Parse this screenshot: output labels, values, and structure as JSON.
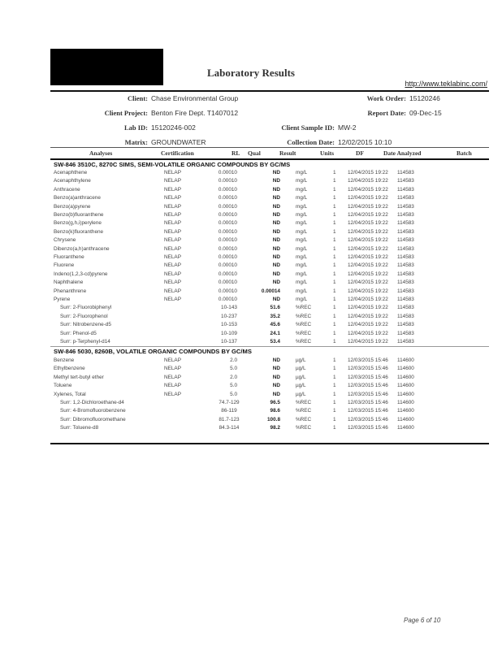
{
  "header": {
    "title": "Laboratory Results",
    "url": "http://www.teklabinc.com/",
    "client_label": "Client:",
    "client": "Chase Environmental Group",
    "project_label": "Client Project:",
    "project": "Benton Fire Dept. T1407012",
    "labid_label": "Lab ID:",
    "labid": "15120246-002",
    "matrix_label": "Matrix:",
    "matrix": "GROUNDWATER",
    "workorder_label": "Work Order:",
    "workorder": "15120246",
    "reportdate_label": "Report Date:",
    "reportdate": "09-Dec-15",
    "sampleid_label": "Client Sample ID:",
    "sampleid": "MW-2",
    "colldate_label": "Collection Date:",
    "colldate": "12/02/2015 10:10"
  },
  "columns": [
    "Analyses",
    "Certification",
    "RL",
    "Qual",
    "Result",
    "Units",
    "DF",
    "Date Analyzed",
    "Batch"
  ],
  "sections": [
    {
      "title": "SW-846 3510C, 8270C SIMS, SEMI-VOLATILE ORGANIC COMPOUNDS BY GC/MS",
      "rows": [
        {
          "analyte": "Acenaphthene",
          "cert": "NELAP",
          "rl": "0.00010",
          "result": "ND",
          "units": "mg/L",
          "df": "1",
          "date": "12/04/2015 19:22",
          "batch": "114583"
        },
        {
          "analyte": "Acenaphthylene",
          "cert": "NELAP",
          "rl": "0.00010",
          "result": "ND",
          "units": "mg/L",
          "df": "1",
          "date": "12/04/2015 19:22",
          "batch": "114583"
        },
        {
          "analyte": "Anthracene",
          "cert": "NELAP",
          "rl": "0.00010",
          "result": "ND",
          "units": "mg/L",
          "df": "1",
          "date": "12/04/2015 19:22",
          "batch": "114583"
        },
        {
          "analyte": "Benzo(a)anthracene",
          "cert": "NELAP",
          "rl": "0.00010",
          "result": "ND",
          "units": "mg/L",
          "df": "1",
          "date": "12/04/2015 19:22",
          "batch": "114583"
        },
        {
          "analyte": "Benzo(a)pyrene",
          "cert": "NELAP",
          "rl": "0.00010",
          "result": "ND",
          "units": "mg/L",
          "df": "1",
          "date": "12/04/2015 19:22",
          "batch": "114583"
        },
        {
          "analyte": "Benzo(b)fluoranthene",
          "cert": "NELAP",
          "rl": "0.00010",
          "result": "ND",
          "units": "mg/L",
          "df": "1",
          "date": "12/04/2015 19:22",
          "batch": "114583"
        },
        {
          "analyte": "Benzo(g,h,i)perylene",
          "cert": "NELAP",
          "rl": "0.00010",
          "result": "ND",
          "units": "mg/L",
          "df": "1",
          "date": "12/04/2015 19:22",
          "batch": "114583"
        },
        {
          "analyte": "Benzo(k)fluoranthene",
          "cert": "NELAP",
          "rl": "0.00010",
          "result": "ND",
          "units": "mg/L",
          "df": "1",
          "date": "12/04/2015 19:22",
          "batch": "114583"
        },
        {
          "analyte": "Chrysene",
          "cert": "NELAP",
          "rl": "0.00010",
          "result": "ND",
          "units": "mg/L",
          "df": "1",
          "date": "12/04/2015 19:22",
          "batch": "114583"
        },
        {
          "analyte": "Dibenzo(a,h)anthracene",
          "cert": "NELAP",
          "rl": "0.00010",
          "result": "ND",
          "units": "mg/L",
          "df": "1",
          "date": "12/04/2015 19:22",
          "batch": "114583"
        },
        {
          "analyte": "Fluoranthene",
          "cert": "NELAP",
          "rl": "0.00010",
          "result": "ND",
          "units": "mg/L",
          "df": "1",
          "date": "12/04/2015 19:22",
          "batch": "114583"
        },
        {
          "analyte": "Fluorene",
          "cert": "NELAP",
          "rl": "0.00010",
          "result": "ND",
          "units": "mg/L",
          "df": "1",
          "date": "12/04/2015 19:22",
          "batch": "114583"
        },
        {
          "analyte": "Indeno(1,2,3-cd)pyrene",
          "cert": "NELAP",
          "rl": "0.00010",
          "result": "ND",
          "units": "mg/L",
          "df": "1",
          "date": "12/04/2015 19:22",
          "batch": "114583"
        },
        {
          "analyte": "Naphthalene",
          "cert": "NELAP",
          "rl": "0.00010",
          "result": "ND",
          "units": "mg/L",
          "df": "1",
          "date": "12/04/2015 19:22",
          "batch": "114583"
        },
        {
          "analyte": "Phenanthrene",
          "cert": "NELAP",
          "rl": "0.00010",
          "result": "0.00014",
          "units": "mg/L",
          "df": "1",
          "date": "12/04/2015 19:22",
          "batch": "114583"
        },
        {
          "analyte": "Pyrene",
          "cert": "NELAP",
          "rl": "0.00010",
          "result": "ND",
          "units": "mg/L",
          "df": "1",
          "date": "12/04/2015 19:22",
          "batch": "114583"
        },
        {
          "analyte": "Surr: 2-Fluorobiphenyl",
          "cert": "",
          "rl": "10-143",
          "result": "51.6",
          "units": "%REC",
          "df": "1",
          "date": "12/04/2015 19:22",
          "batch": "114583",
          "surr": true
        },
        {
          "analyte": "Surr: 2-Fluorophenol",
          "cert": "",
          "rl": "10-237",
          "result": "35.2",
          "units": "%REC",
          "df": "1",
          "date": "12/04/2015 19:22",
          "batch": "114583",
          "surr": true
        },
        {
          "analyte": "Surr: Nitrobenzene-d5",
          "cert": "",
          "rl": "10-153",
          "result": "45.6",
          "units": "%REC",
          "df": "1",
          "date": "12/04/2015 19:22",
          "batch": "114583",
          "surr": true
        },
        {
          "analyte": "Surr: Phenol-d5",
          "cert": "",
          "rl": "10-109",
          "result": "24.1",
          "units": "%REC",
          "df": "1",
          "date": "12/04/2015 19:22",
          "batch": "114583",
          "surr": true
        },
        {
          "analyte": "Surr: p-Terphenyl-d14",
          "cert": "",
          "rl": "10-137",
          "result": "53.4",
          "units": "%REC",
          "df": "1",
          "date": "12/04/2015 19:22",
          "batch": "114583",
          "surr": true
        }
      ]
    },
    {
      "title": "SW-846 5030, 8260B, VOLATILE ORGANIC COMPOUNDS BY GC/MS",
      "rows": [
        {
          "analyte": "Benzene",
          "cert": "NELAP",
          "rl": "2.0",
          "result": "ND",
          "units": "µg/L",
          "df": "1",
          "date": "12/03/2015 15:46",
          "batch": "114600"
        },
        {
          "analyte": "Ethylbenzene",
          "cert": "NELAP",
          "rl": "5.0",
          "result": "ND",
          "units": "µg/L",
          "df": "1",
          "date": "12/03/2015 15:46",
          "batch": "114600"
        },
        {
          "analyte": "Methyl tert-butyl ether",
          "cert": "NELAP",
          "rl": "2.0",
          "result": "ND",
          "units": "µg/L",
          "df": "1",
          "date": "12/03/2015 15:46",
          "batch": "114600"
        },
        {
          "analyte": "Toluene",
          "cert": "NELAP",
          "rl": "5.0",
          "result": "ND",
          "units": "µg/L",
          "df": "1",
          "date": "12/03/2015 15:46",
          "batch": "114600"
        },
        {
          "analyte": "Xylenes, Total",
          "cert": "NELAP",
          "rl": "5.0",
          "result": "ND",
          "units": "µg/L",
          "df": "1",
          "date": "12/03/2015 15:46",
          "batch": "114600"
        },
        {
          "analyte": "Surr: 1,2-Dichloroethane-d4",
          "cert": "",
          "rl": "74.7-129",
          "result": "96.5",
          "units": "%REC",
          "df": "1",
          "date": "12/03/2015 15:46",
          "batch": "114600",
          "surr": true
        },
        {
          "analyte": "Surr: 4-Bromofluorobenzene",
          "cert": "",
          "rl": "86-119",
          "result": "98.6",
          "units": "%REC",
          "df": "1",
          "date": "12/03/2015 15:46",
          "batch": "114600",
          "surr": true
        },
        {
          "analyte": "Surr: Dibromofluoromethane",
          "cert": "",
          "rl": "81.7-123",
          "result": "100.8",
          "units": "%REC",
          "df": "1",
          "date": "12/03/2015 15:46",
          "batch": "114600",
          "surr": true
        },
        {
          "analyte": "Surr: Toluene-d8",
          "cert": "",
          "rl": "84.3-114",
          "result": "98.2",
          "units": "%REC",
          "df": "1",
          "date": "12/03/2015 15:46",
          "batch": "114600",
          "surr": true
        }
      ]
    }
  ],
  "footer": {
    "page": "Page 6 of 10"
  }
}
